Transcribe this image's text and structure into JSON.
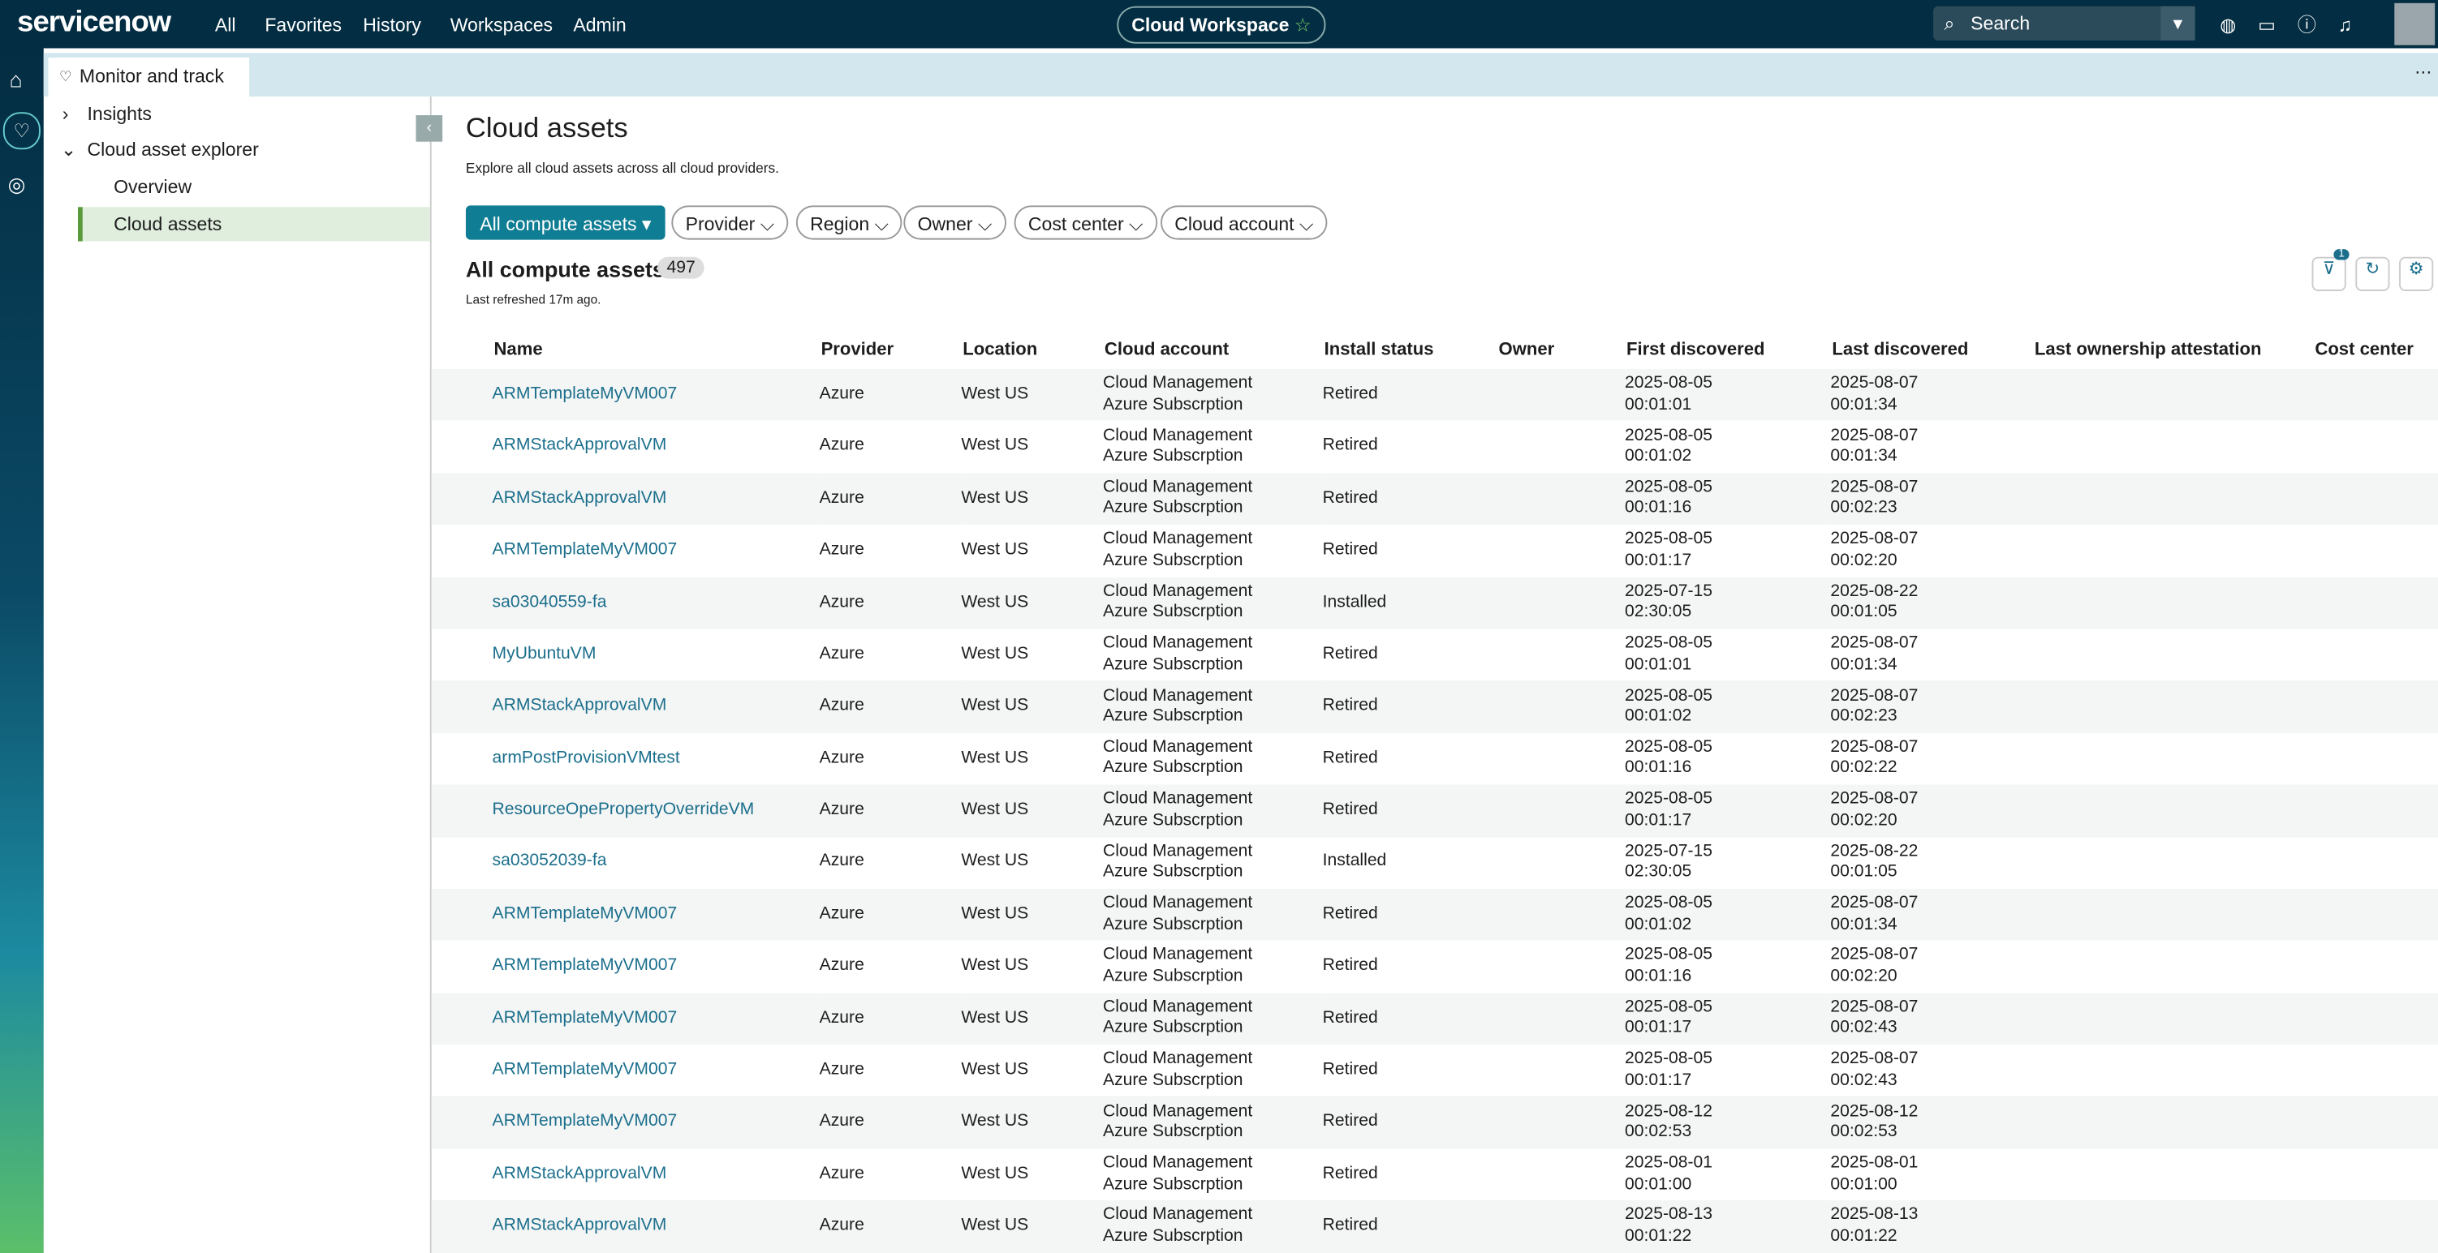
{
  "top_nav": {
    "logo": "servicenow",
    "items": [
      "All",
      "Favorites",
      "History",
      "Workspaces",
      "Admin"
    ],
    "workspace": "Cloud Workspace",
    "search": "Search"
  },
  "tab": "Monitor and track",
  "sidebar": {
    "items": [
      "Insights",
      "Cloud asset explorer",
      "Overview",
      "Cloud assets"
    ]
  },
  "header": {
    "title": "Cloud assets",
    "description": "Explore all cloud assets across all cloud providers."
  },
  "filters": [
    "All compute assets",
    "Provider",
    "Region",
    "Owner",
    "Cost center",
    "Cloud account"
  ],
  "list": {
    "title": "All compute assets",
    "count": 497,
    "refreshed": "Last refreshed 17m ago.",
    "filter_badge": 1
  },
  "table": {
    "columns": [
      "Name",
      "Provider",
      "Location",
      "Cloud account",
      "Install status",
      "Owner",
      "First discovered",
      "Last discovered",
      "Last ownership attestation",
      "Cost center"
    ],
    "rows": [
      [
        "ARMTemplateMyVM007",
        "Azure",
        "West US",
        "Cloud Management Azure Subscrption",
        "Retired",
        "2025-08-05 00:01:01",
        "2025-08-07 00:01:34"
      ],
      [
        "ARMStackApprovalVM",
        "Azure",
        "West US",
        "Cloud Management Azure Subscrption",
        "Retired",
        "2025-08-05 00:01:02",
        "2025-08-07 00:01:34"
      ],
      [
        "ARMStackApprovalVM",
        "Azure",
        "West US",
        "Cloud Management Azure Subscrption",
        "Retired",
        "2025-08-05 00:01:16",
        "2025-08-07 00:02:23"
      ],
      [
        "ARMTemplateMyVM007",
        "Azure",
        "West US",
        "Cloud Management Azure Subscrption",
        "Retired",
        "2025-08-05 00:01:17",
        "2025-08-07 00:02:20"
      ],
      [
        "sa03040559-fa",
        "Azure",
        "West US",
        "Cloud Management Azure Subscrption",
        "Installed",
        "2025-07-15 02:30:05",
        "2025-08-22 00:01:05"
      ],
      [
        "MyUbuntuVM",
        "Azure",
        "West US",
        "Cloud Management Azure Subscrption",
        "Retired",
        "2025-08-05 00:01:01",
        "2025-08-07 00:01:34"
      ],
      [
        "ARMStackApprovalVM",
        "Azure",
        "West US",
        "Cloud Management Azure Subscrption",
        "Retired",
        "2025-08-05 00:01:02",
        "2025-08-07 00:02:23"
      ],
      [
        "armPostProvisionVMtest",
        "Azure",
        "West US",
        "Cloud Management Azure Subscrption",
        "Retired",
        "2025-08-05 00:01:16",
        "2025-08-07 00:02:22"
      ],
      [
        "ResourceOpePropertyOverrideVM",
        "Azure",
        "West US",
        "Cloud Management Azure Subscrption",
        "Retired",
        "2025-08-05 00:01:17",
        "2025-08-07 00:02:20"
      ],
      [
        "sa03052039-fa",
        "Azure",
        "West US",
        "Cloud Management Azure Subscrption",
        "Installed",
        "2025-07-15 02:30:05",
        "2025-08-22 00:01:05"
      ],
      [
        "ARMTemplateMyVM007",
        "Azure",
        "West US",
        "Cloud Management Azure Subscrption",
        "Retired",
        "2025-08-05 00:01:02",
        "2025-08-07 00:01:34"
      ],
      [
        "ARMTemplateMyVM007",
        "Azure",
        "West US",
        "Cloud Management Azure Subscrption",
        "Retired",
        "2025-08-05 00:01:16",
        "2025-08-07 00:02:20"
      ],
      [
        "ARMTemplateMyVM007",
        "Azure",
        "West US",
        "Cloud Management Azure Subscrption",
        "Retired",
        "2025-08-05 00:01:17",
        "2025-08-07 00:02:43"
      ],
      [
        "ARMTemplateMyVM007",
        "Azure",
        "West US",
        "Cloud Management Azure Subscrption",
        "Retired",
        "2025-08-05 00:01:17",
        "2025-08-07 00:02:43"
      ],
      [
        "ARMTemplateMyVM007",
        "Azure",
        "West US",
        "Cloud Management Azure Subscrption",
        "Retired",
        "2025-08-12 00:02:53",
        "2025-08-12 00:02:53"
      ],
      [
        "ARMStackApprovalVM",
        "Azure",
        "West US",
        "Cloud Management Azure Subscrption",
        "Retired",
        "2025-08-01 00:01:00",
        "2025-08-01 00:01:00"
      ],
      [
        "ARMStackApprovalVM",
        "Azure",
        "West US",
        "Cloud Management Azure Subscrption",
        "Retired",
        "2025-08-13 00:01:22",
        "2025-08-13 00:01:22"
      ]
    ]
  }
}
